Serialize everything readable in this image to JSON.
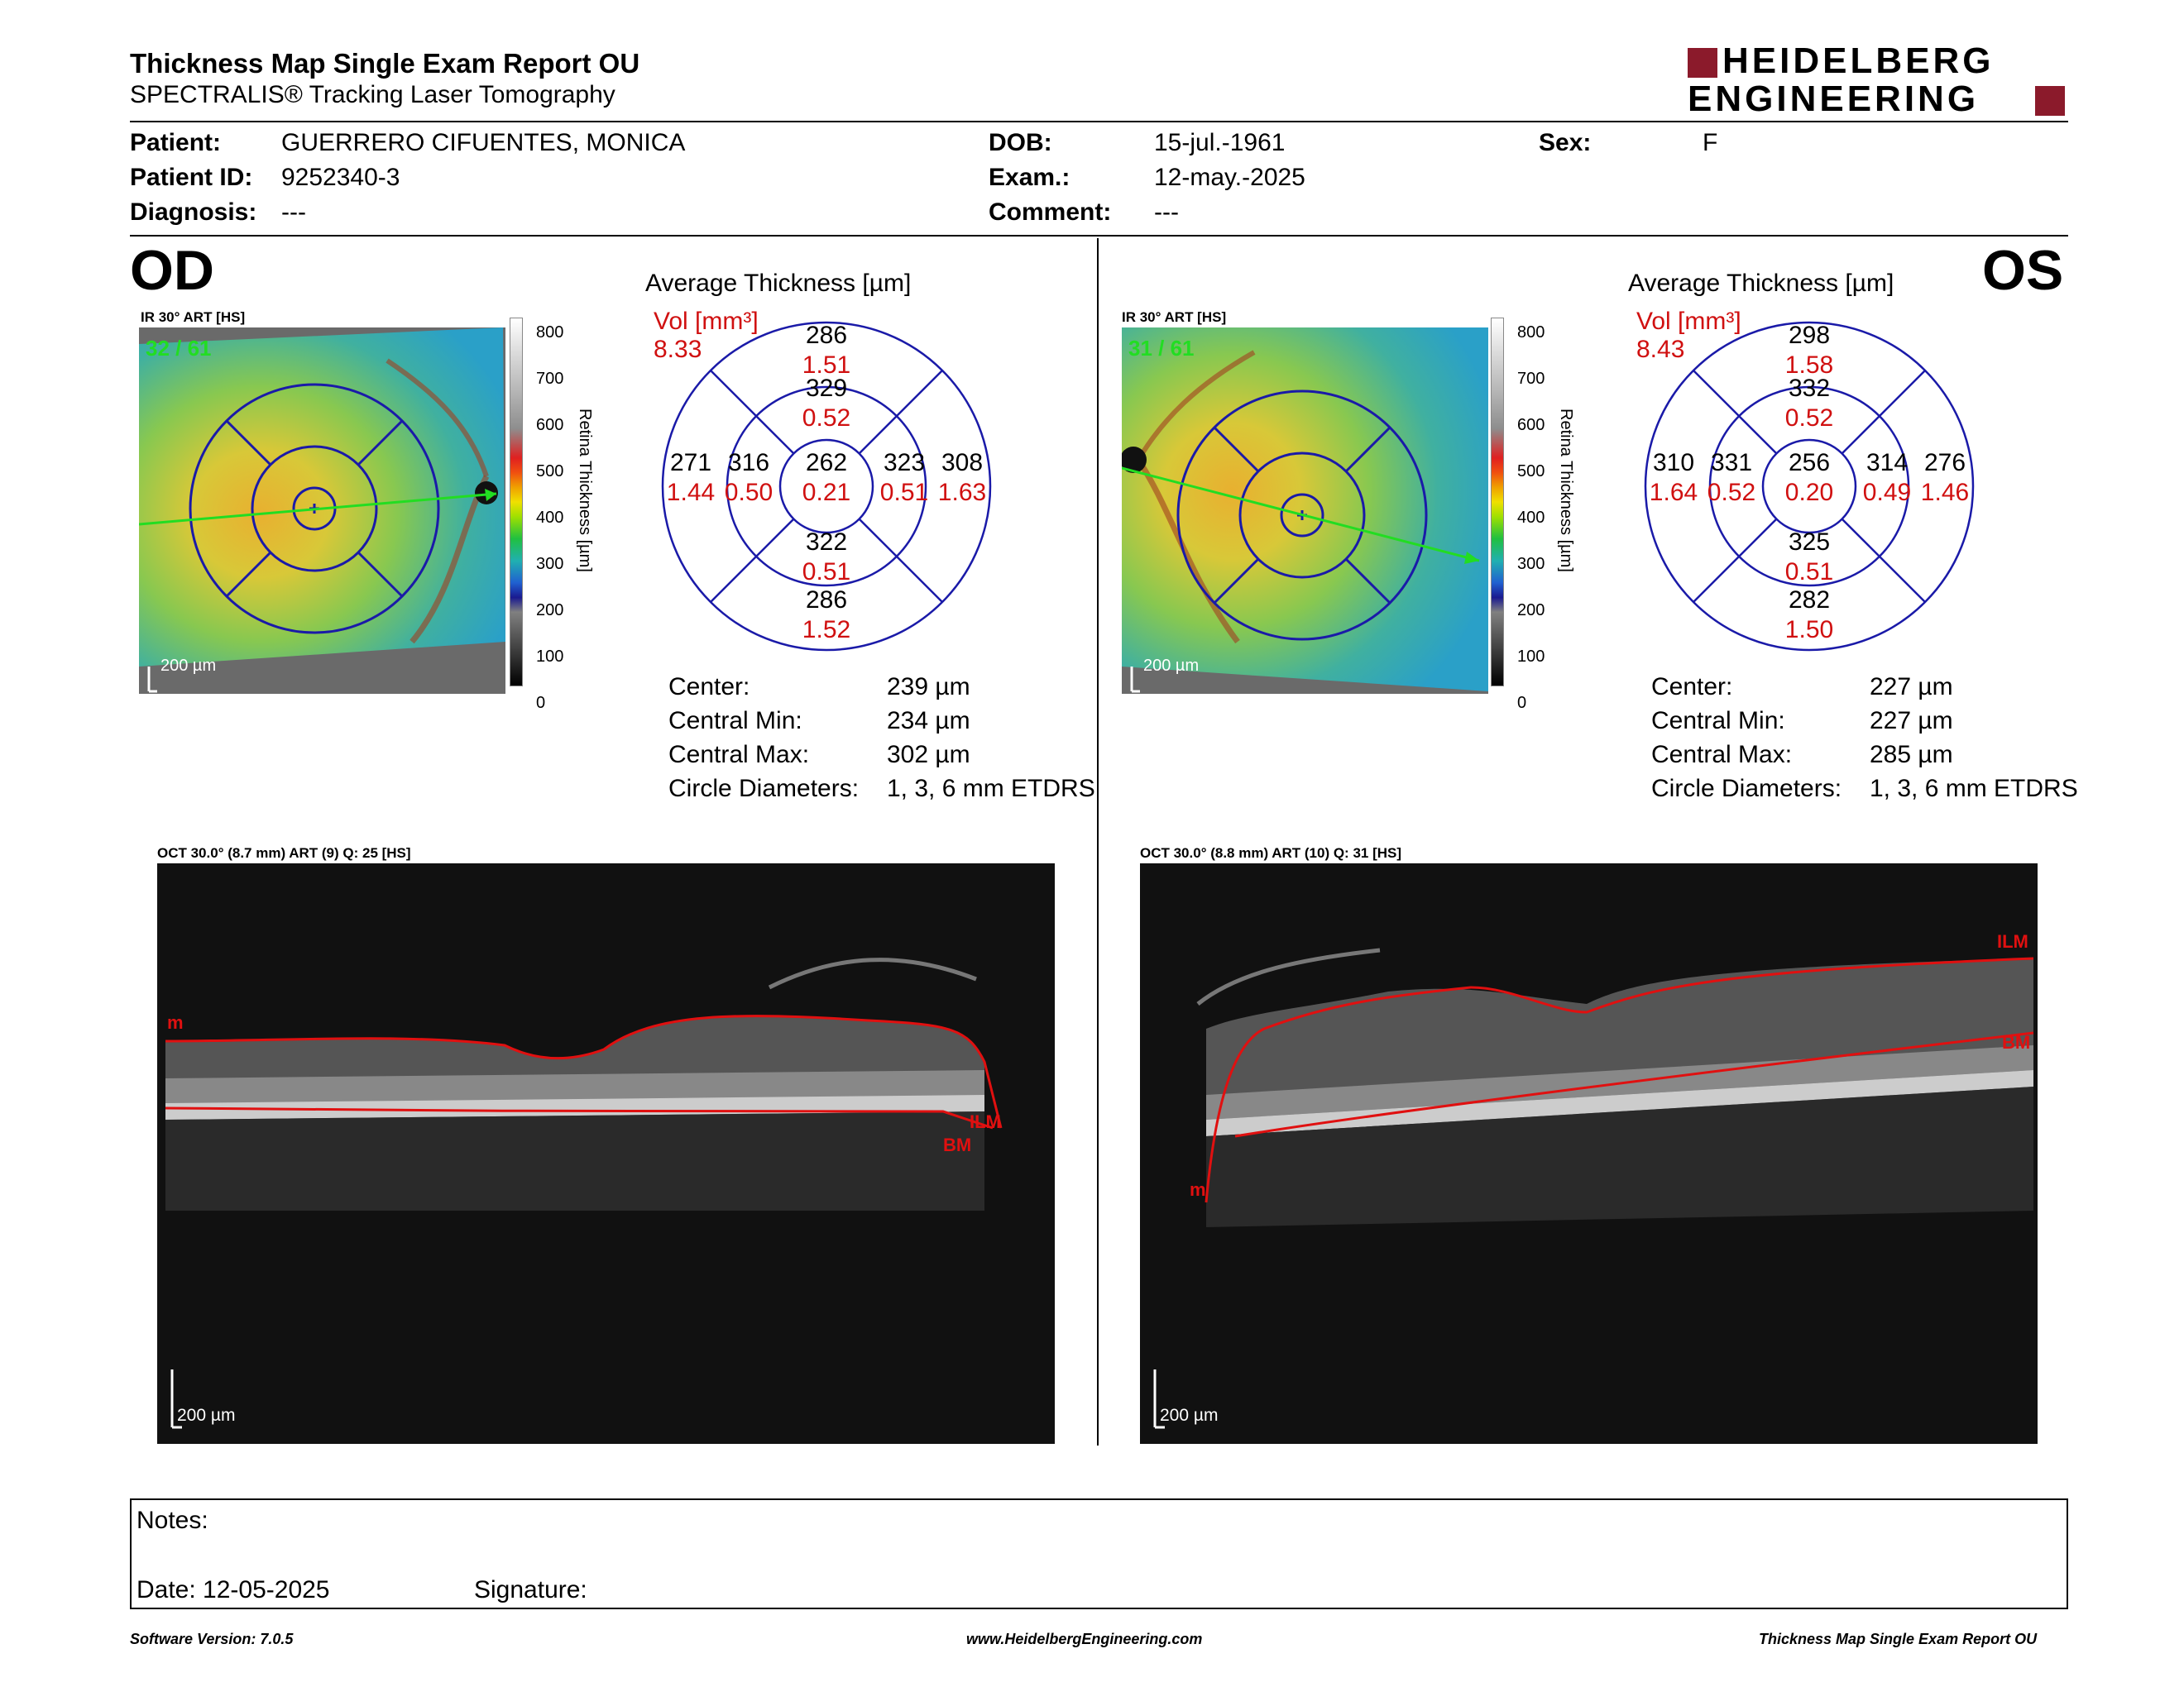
{
  "header": {
    "title": "Thickness Map Single Exam Report OU",
    "subtitle": "SPECTRALIS® Tracking Laser Tomography",
    "logo_line1": "HEIDELBERG",
    "logo_line2": "ENGINEERING",
    "logo_color": "#8b1a2b"
  },
  "patient": {
    "patient_label": "Patient:",
    "patient_value": "GUERRERO CIFUENTES, MONICA",
    "id_label": "Patient ID:",
    "id_value": "9252340-3",
    "diagnosis_label": "Diagnosis:",
    "diagnosis_value": "---",
    "dob_label": "DOB:",
    "dob_value": "15-jul.-1961",
    "exam_label": "Exam.:",
    "exam_value": "12-may.-2025",
    "comment_label": "Comment:",
    "comment_value": "---",
    "sex_label": "Sex:",
    "sex_value": "F"
  },
  "od": {
    "eye": "OD",
    "ir_label": "IR 30° ART [HS]",
    "frames": "32 / 61",
    "scale_label": "200 µm",
    "avg_title": "Average Thickness [µm]",
    "vol_label": "Vol [mm³]",
    "vol_value": "8.33",
    "sectors": {
      "outer_sup": [
        "286",
        "1.51"
      ],
      "inner_sup": [
        "329",
        "0.52"
      ],
      "outer_temp": [
        "271",
        "1.44"
      ],
      "inner_temp": [
        "316",
        "0.50"
      ],
      "center": [
        "262",
        "0.21"
      ],
      "inner_nasal": [
        "323",
        "0.51"
      ],
      "outer_nasal": [
        "308",
        "1.63"
      ],
      "inner_inf": [
        "322",
        "0.51"
      ],
      "outer_inf": [
        "286",
        "1.52"
      ]
    },
    "stats": [
      {
        "label": "Center:",
        "value": "239 µm"
      },
      {
        "label": "Central Min:",
        "value": "234 µm"
      },
      {
        "label": "Central Max:",
        "value": "302 µm"
      },
      {
        "label": "Circle Diameters:",
        "value": "1, 3, 6 mm ETDRS"
      }
    ],
    "oct_label": "OCT 30.0° (8.7 mm) ART (9) Q: 25 [HS]",
    "oct_scale": "200 µm",
    "ilm": "ILM",
    "bm": "BM",
    "m": "m"
  },
  "os": {
    "eye": "OS",
    "ir_label": "IR 30° ART [HS]",
    "frames": "31 / 61",
    "scale_label": "200 µm",
    "avg_title": "Average Thickness [µm]",
    "vol_label": "Vol [mm³]",
    "vol_value": "8.43",
    "sectors": {
      "outer_sup": [
        "298",
        "1.58"
      ],
      "inner_sup": [
        "332",
        "0.52"
      ],
      "outer_temp": [
        "310",
        "1.64"
      ],
      "inner_temp": [
        "331",
        "0.52"
      ],
      "center": [
        "256",
        "0.20"
      ],
      "inner_nasal": [
        "314",
        "0.49"
      ],
      "outer_nasal": [
        "276",
        "1.46"
      ],
      "inner_inf": [
        "325",
        "0.51"
      ],
      "outer_inf": [
        "282",
        "1.50"
      ]
    },
    "stats": [
      {
        "label": "Center:",
        "value": "227 µm"
      },
      {
        "label": "Central Min:",
        "value": "227 µm"
      },
      {
        "label": "Central Max:",
        "value": "285 µm"
      },
      {
        "label": "Circle Diameters:",
        "value": "1, 3, 6 mm ETDRS"
      }
    ],
    "oct_label": "OCT 30.0° (8.8 mm) ART (10) Q: 31 [HS]",
    "oct_scale": "200 µm",
    "ilm": "ILM",
    "bm": "BM",
    "m": "m"
  },
  "colorbar": {
    "ticks": [
      "800",
      "700",
      "600",
      "500",
      "400",
      "300",
      "200",
      "100",
      "0"
    ],
    "title": "Retina Thickness [µm]"
  },
  "notes": {
    "notes_label": "Notes:",
    "date_label": "Date: 12-05-2025",
    "signature_label": "Signature:"
  },
  "footer": {
    "left": "Software Version: 7.0.5",
    "center": "www.HeidelbergEngineering.com",
    "right": "Thickness Map Single Exam Report OU"
  },
  "colors": {
    "grid_blue": "#1a1aa8",
    "value_red": "#d01010",
    "scan_green": "#22dd22",
    "segment_red": "#e01010"
  }
}
